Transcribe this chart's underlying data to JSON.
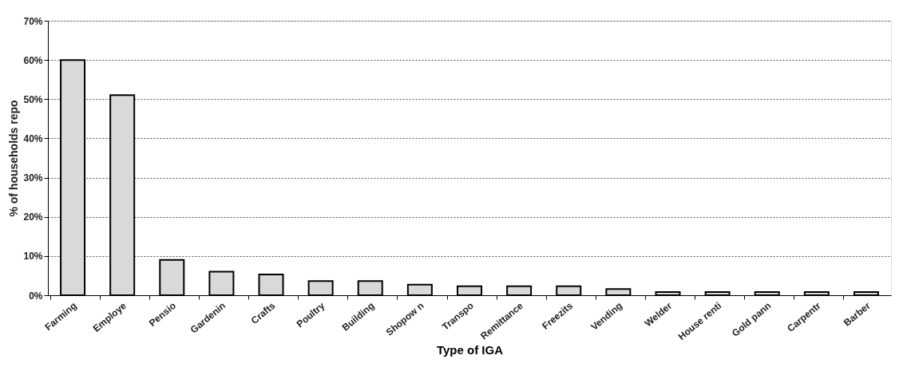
{
  "chart_data": {
    "type": "bar",
    "xlabel": "Type of IGA",
    "ylabel": "% of households repo",
    "categories": [
      "Farming",
      "Employe",
      "Pensio",
      "Gardenin",
      "Crafts",
      "Poultry",
      "Building",
      "Shopow n",
      "Transpo",
      "Remittance",
      "Freezits",
      "Vending",
      "Welder",
      "House renti",
      "Gold pann",
      "Carpentr",
      "Barber"
    ],
    "values": [
      60,
      51,
      9,
      6,
      5.3,
      3.6,
      3.6,
      2.7,
      2.3,
      2.3,
      2.3,
      1.6,
      0.8,
      0.8,
      0.8,
      0.8,
      0.8
    ],
    "color": "#d9d9d9",
    "ylim": [
      0,
      70
    ],
    "yticks": [
      {
        "value": 0,
        "label": "0%"
      },
      {
        "value": 10,
        "label": "10%"
      },
      {
        "value": 20,
        "label": "20%"
      },
      {
        "value": 30,
        "label": "30%"
      },
      {
        "value": 40,
        "label": "40%"
      },
      {
        "value": 50,
        "label": "50%"
      },
      {
        "value": 60,
        "label": "60%"
      },
      {
        "value": 70,
        "label": "70%"
      }
    ],
    "grid": "y"
  }
}
